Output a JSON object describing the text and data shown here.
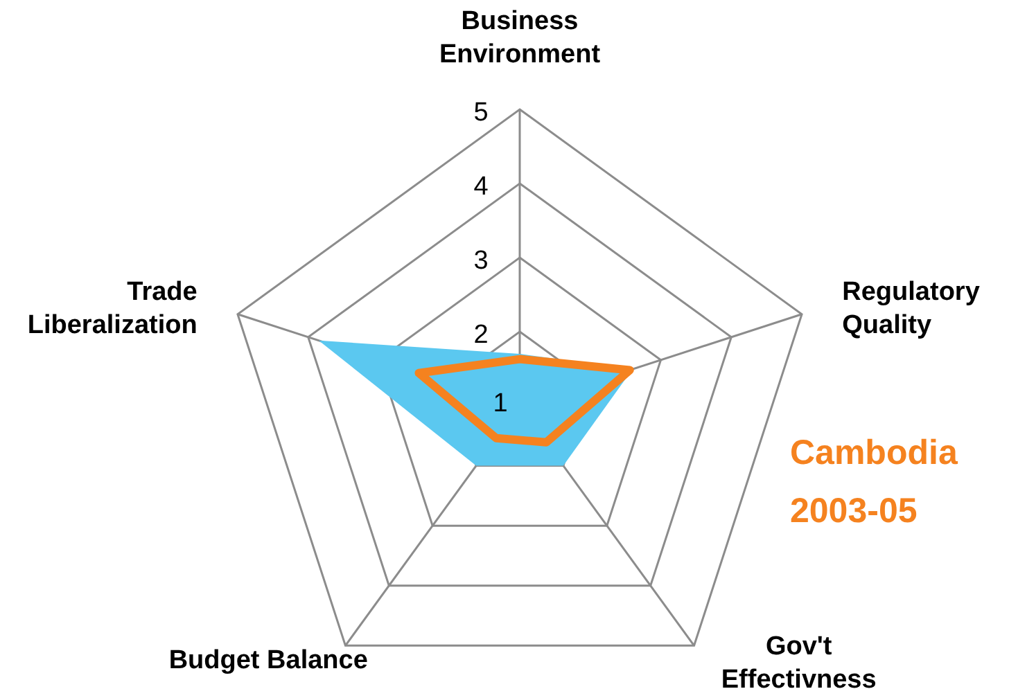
{
  "chart_data": {
    "type": "radar",
    "title": "Cambodia 2003-05",
    "categories": [
      "Business Environment",
      "Regulatory Quality",
      "Gov't Effectivness",
      "Budget Balance",
      "Trade Liberalization"
    ],
    "series": [
      {
        "type": "area",
        "color": "#5bc8f0",
        "values": [
          1.7,
          2.6,
          2.0,
          2.0,
          3.85
        ]
      },
      {
        "color": "#f5821f",
        "values": [
          1.63,
          2.56,
          1.61,
          1.54,
          2.43
        ]
      }
    ],
    "ylim": [
      1,
      5
    ],
    "yticks": [
      1,
      2,
      3,
      4,
      5
    ],
    "grid": true
  }
}
